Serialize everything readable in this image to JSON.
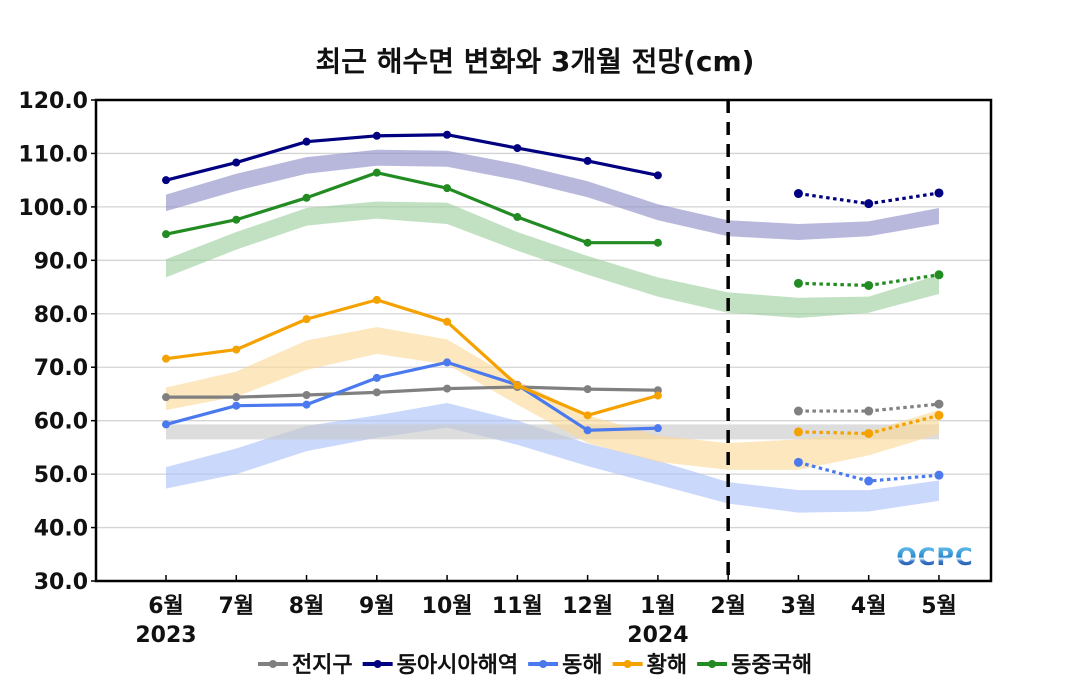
{
  "chart_data": {
    "type": "line",
    "title": "최근 해수면 변화와 3개월 전망(cm)",
    "xlabel": "",
    "ylabel": "",
    "ylim": [
      30,
      120
    ],
    "yticks": [
      "30.0",
      "40.0",
      "50.0",
      "60.0",
      "70.0",
      "80.0",
      "90.0",
      "100.0",
      "110.0",
      "120.0"
    ],
    "ytick_values": [
      30,
      40,
      50,
      60,
      70,
      80,
      90,
      100,
      110,
      120
    ],
    "grid": true,
    "categories": [
      "6월",
      "7월",
      "8월",
      "9월",
      "10월",
      "11월",
      "12월",
      "1월",
      "2월",
      "3월",
      "4월",
      "5월"
    ],
    "year_labels": [
      {
        "label": "2023",
        "category_index": 0
      },
      {
        "label": "2024",
        "category_index": 7
      }
    ],
    "divider": {
      "category_index": 8,
      "style": "dashed",
      "meaning": "observed vs forecast boundary"
    },
    "legend_position": "bottom",
    "series": [
      {
        "name": "전지구",
        "color": "#808080",
        "band_color": "#c8c8c8",
        "observed": [
          64.4,
          64.4,
          64.8,
          65.3,
          66.0,
          66.3,
          65.9,
          65.7,
          null,
          null,
          null,
          null
        ],
        "forecast": [
          null,
          null,
          null,
          null,
          null,
          null,
          null,
          null,
          null,
          61.8,
          61.8,
          63.1
        ],
        "band_low": [
          56.5,
          56.5,
          56.5,
          56.5,
          56.5,
          56.5,
          56.5,
          56.5,
          56.5,
          56.5,
          56.5,
          56.5
        ],
        "band_high": [
          59.3,
          59.3,
          59.3,
          59.3,
          59.3,
          59.3,
          59.3,
          59.3,
          59.3,
          59.3,
          59.3,
          59.3
        ]
      },
      {
        "name": "동아시아해역",
        "color": "#000080",
        "band_color": "#8c8cc8",
        "observed": [
          105.0,
          108.3,
          112.2,
          113.3,
          113.5,
          111.0,
          108.6,
          105.9,
          null,
          null,
          null,
          null
        ],
        "forecast": [
          null,
          null,
          null,
          null,
          null,
          null,
          null,
          null,
          null,
          102.5,
          100.6,
          102.6
        ],
        "band_low": [
          99.2,
          103.0,
          106.2,
          107.7,
          107.5,
          105.0,
          101.8,
          97.5,
          94.5,
          93.8,
          94.5,
          96.8
        ],
        "band_high": [
          102.3,
          106.2,
          109.3,
          110.7,
          110.5,
          108.0,
          104.8,
          100.5,
          97.5,
          96.8,
          97.3,
          99.8
        ]
      },
      {
        "name": "동해",
        "color": "#4a7aee",
        "band_color": "#a8c0f8",
        "observed": [
          59.3,
          62.8,
          63.0,
          68.0,
          70.9,
          66.7,
          58.2,
          58.6,
          null,
          null,
          null,
          null
        ],
        "forecast": [
          null,
          null,
          null,
          null,
          null,
          null,
          null,
          null,
          null,
          52.2,
          48.7,
          49.8
        ],
        "band_low": [
          47.3,
          50.0,
          54.3,
          56.8,
          58.7,
          55.5,
          51.5,
          48.0,
          44.5,
          42.8,
          43.0,
          45.0
        ],
        "band_high": [
          51.3,
          54.8,
          59.0,
          61.0,
          63.3,
          60.0,
          55.7,
          52.5,
          48.5,
          47.0,
          47.0,
          48.8
        ]
      },
      {
        "name": "황해",
        "color": "#f5a100",
        "band_color": "#fcd898",
        "observed": [
          71.6,
          73.3,
          79.0,
          82.6,
          78.5,
          66.6,
          61.0,
          64.7,
          null,
          null,
          null,
          null
        ],
        "forecast": [
          null,
          null,
          null,
          null,
          null,
          null,
          null,
          null,
          null,
          57.9,
          57.6,
          61.0
        ],
        "band_low": [
          62.0,
          64.5,
          69.5,
          72.5,
          70.5,
          63.0,
          55.8,
          52.3,
          50.8,
          50.8,
          53.5,
          57.5
        ],
        "band_high": [
          66.2,
          69.2,
          75.0,
          77.5,
          75.2,
          67.5,
          61.0,
          57.2,
          55.8,
          56.5,
          58.0,
          62.0
        ]
      },
      {
        "name": "동중국해",
        "color": "#228b22",
        "band_color": "#9ccf9c",
        "observed": [
          94.9,
          97.6,
          101.7,
          106.4,
          103.5,
          98.1,
          93.3,
          93.3,
          null,
          null,
          null,
          null
        ],
        "forecast": [
          null,
          null,
          null,
          null,
          null,
          null,
          null,
          null,
          null,
          85.7,
          85.3,
          87.3
        ],
        "band_low": [
          86.8,
          92.0,
          96.5,
          97.8,
          96.8,
          91.8,
          87.3,
          83.2,
          80.2,
          79.2,
          80.2,
          83.7
        ],
        "band_high": [
          90.2,
          95.3,
          99.8,
          101.0,
          100.8,
          95.3,
          90.8,
          86.8,
          84.0,
          83.0,
          83.2,
          87.3
        ]
      }
    ],
    "band_draw_order": [
      "동해",
      "전지구",
      "황해",
      "동아시아해역",
      "동중국해"
    ],
    "line_draw_order": [
      "전지구",
      "동해",
      "황해",
      "동중국해",
      "동아시아해역"
    ]
  },
  "watermark": {
    "text": "OCPC"
  }
}
